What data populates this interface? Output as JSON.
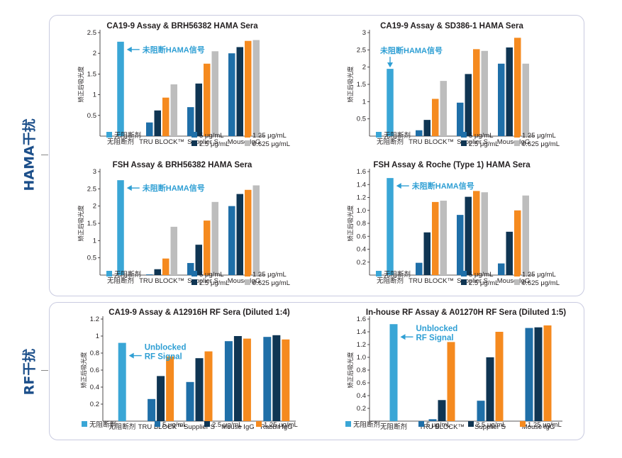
{
  "colors": {
    "none": "#3aa6d6",
    "c5": "#1f6fa8",
    "c25": "#0f3553",
    "c125": "#f58a1f",
    "c0625": "#bdbdbd",
    "annotation": "#2f9fd4",
    "side_label": "#1c4f8a"
  },
  "sections": {
    "hama_label": "HAMA干扰",
    "rf_label": "RF干扰"
  },
  "chart_data": [
    {
      "type": "bar",
      "title": "CA19-9 Assay & BRH56382 HAMA Sera",
      "ylabel": "矫正后吸光度",
      "ylim": [
        0,
        2.5
      ],
      "yticks": [
        "0.5",
        "1",
        "1.5",
        "2",
        "2.5"
      ],
      "categories": [
        "无阻断剂",
        "TRU BLOCK™",
        "Supplier S",
        "Mouse IgG"
      ],
      "series": [
        {
          "name": "无阻断剂",
          "color": "#3aa6d6",
          "values": [
            2.28,
            null,
            null,
            null
          ]
        },
        {
          "name": "5 μg/mL",
          "color": "#1f6fa8",
          "values": [
            null,
            0.33,
            0.7,
            2.0
          ]
        },
        {
          "name": "2.5 μg/mL",
          "color": "#0f3553",
          "values": [
            null,
            0.62,
            1.27,
            2.15
          ]
        },
        {
          "name": "1.25 μg/mL",
          "color": "#f58a1f",
          "values": [
            null,
            0.93,
            1.75,
            2.3
          ]
        },
        {
          "name": "0.625 μg/mL",
          "color": "#bdbdbd",
          "values": [
            null,
            1.25,
            2.05,
            2.32
          ]
        }
      ],
      "annotation": [
        "未阻断HAMA信号"
      ]
    },
    {
      "type": "bar",
      "title": "CA19-9 Assay & SD386-1 HAMA Sera",
      "ylabel": "矫正后吸光度",
      "ylim": [
        0,
        3
      ],
      "yticks": [
        "0.5",
        "1",
        "1.5",
        "2",
        "2.5",
        "3"
      ],
      "categories": [
        "无阻断剂",
        "TRU BLOCK™",
        "Supplier S",
        "Mouse IgG"
      ],
      "series": [
        {
          "name": "无阻断剂",
          "color": "#3aa6d6",
          "values": [
            1.95,
            null,
            null,
            null
          ]
        },
        {
          "name": "5 μg/mL",
          "color": "#1f6fa8",
          "values": [
            null,
            0.17,
            0.97,
            2.1
          ]
        },
        {
          "name": "2.5 μg/mL",
          "color": "#0f3553",
          "values": [
            null,
            0.47,
            1.8,
            2.57
          ]
        },
        {
          "name": "1.25 μg/mL",
          "color": "#f58a1f",
          "values": [
            null,
            1.08,
            2.52,
            2.85
          ]
        },
        {
          "name": "0.625 μg/mL",
          "color": "#bdbdbd",
          "values": [
            null,
            1.6,
            2.47,
            2.1
          ]
        }
      ],
      "annotation": [
        "未阻断HAMA信号"
      ]
    },
    {
      "type": "bar",
      "title": "FSH Assay & BRH56382 HAMA Sera",
      "ylabel": "矫正后吸光度",
      "ylim": [
        0,
        3
      ],
      "yticks": [
        "0.5",
        "1",
        "1.5",
        "2",
        "2.5",
        "3"
      ],
      "categories": [
        "无阻断剂",
        "TRU BLOCK™",
        "Supplier S",
        "Mouse IgG"
      ],
      "series": [
        {
          "name": "无阻断剂",
          "color": "#3aa6d6",
          "values": [
            2.75,
            null,
            null,
            null
          ]
        },
        {
          "name": "5 μg/mL",
          "color": "#1f6fa8",
          "values": [
            null,
            0.02,
            0.35,
            2.0
          ]
        },
        {
          "name": "2.5 μg/mL",
          "color": "#0f3553",
          "values": [
            null,
            0.17,
            0.88,
            2.35
          ]
        },
        {
          "name": "1.25 μg/mL",
          "color": "#f58a1f",
          "values": [
            null,
            0.48,
            1.58,
            2.47
          ]
        },
        {
          "name": "0.625 μg/mL",
          "color": "#bdbdbd",
          "values": [
            null,
            1.4,
            2.12,
            2.6
          ]
        }
      ],
      "annotation": [
        "未阻断HAMA信号"
      ]
    },
    {
      "type": "bar",
      "title": "FSH Assay & Roche (Type 1) HAMA Sera",
      "ylabel": "矫正后吸光度",
      "ylim": [
        0,
        1.6
      ],
      "yticks": [
        "0.2",
        "0.4",
        "0.6",
        "0.8",
        "1.0",
        "1.2",
        "1.4",
        "1.6"
      ],
      "categories": [
        "无阻断剂",
        "TRU BLOCK™",
        "Supplier S",
        "Mouse IgG"
      ],
      "series": [
        {
          "name": "无阻断剂",
          "color": "#3aa6d6",
          "values": [
            1.5,
            null,
            null,
            null
          ]
        },
        {
          "name": "5 μg/mL",
          "color": "#1f6fa8",
          "values": [
            null,
            0.19,
            0.93,
            0.18
          ]
        },
        {
          "name": "2.5 μg/mL",
          "color": "#0f3553",
          "values": [
            null,
            0.66,
            1.21,
            0.67
          ]
        },
        {
          "name": "1.25 μg/mL",
          "color": "#f58a1f",
          "values": [
            null,
            1.13,
            1.3,
            1.0
          ]
        },
        {
          "name": "0.625 μg/mL",
          "color": "#bdbdbd",
          "values": [
            null,
            1.15,
            1.28,
            1.23
          ]
        }
      ],
      "annotation": [
        "未阻断HAMA信号"
      ]
    },
    {
      "type": "bar",
      "title": "CA19-9 Assay & A12916H RF Sera (Diluted 1:4)",
      "ylabel": "矫正后吸光度",
      "ylim": [
        0,
        1.2
      ],
      "yticks": [
        "0.2",
        "0.4",
        "0.6",
        "0.8",
        "1",
        "1.2"
      ],
      "categories": [
        "无阻断剂",
        "TRU BLOCK™",
        "Supplier S",
        "Mouse IgG",
        "Rabbit IgG"
      ],
      "series": [
        {
          "name": "无阻断剂",
          "color": "#3aa6d6",
          "values": [
            0.92,
            null,
            null,
            null,
            null
          ]
        },
        {
          "name": "5 μg/mL",
          "color": "#1f6fa8",
          "values": [
            null,
            0.26,
            0.46,
            0.94,
            0.99
          ]
        },
        {
          "name": "2.5 μg/mL",
          "color": "#0f3553",
          "values": [
            null,
            0.53,
            0.74,
            1.0,
            1.01
          ]
        },
        {
          "name": "1.25 μg/mL",
          "color": "#f58a1f",
          "values": [
            null,
            0.76,
            0.82,
            0.97,
            0.96
          ]
        }
      ],
      "annotation": [
        "Unblocked",
        "RF Signal"
      ]
    },
    {
      "type": "bar",
      "title": "In-house RF Assay & A01270H RF Sera (Diluted 1:5)",
      "ylabel": "矫正后吸光度",
      "ylim": [
        0,
        1.6
      ],
      "yticks": [
        "0.2",
        "0.4",
        "0.6",
        "0.8",
        "1.0",
        "1.2",
        "1.4",
        "1.6"
      ],
      "categories": [
        "无阻断剂",
        "TRU BLOCK™",
        "Supplier S",
        "Mouse IgG"
      ],
      "series": [
        {
          "name": "无阻断剂",
          "color": "#3aa6d6",
          "values": [
            1.52,
            null,
            null,
            null
          ]
        },
        {
          "name": "5 μg/mL",
          "color": "#1f6fa8",
          "values": [
            null,
            0.03,
            0.32,
            1.46
          ]
        },
        {
          "name": "2.5 μg/mL",
          "color": "#0f3553",
          "values": [
            null,
            0.33,
            1.0,
            1.47
          ]
        },
        {
          "name": "1.25 μg/mL",
          "color": "#f58a1f",
          "values": [
            null,
            1.24,
            1.4,
            1.5
          ]
        }
      ],
      "annotation": [
        "Unblocked",
        "RF Signal"
      ]
    }
  ]
}
